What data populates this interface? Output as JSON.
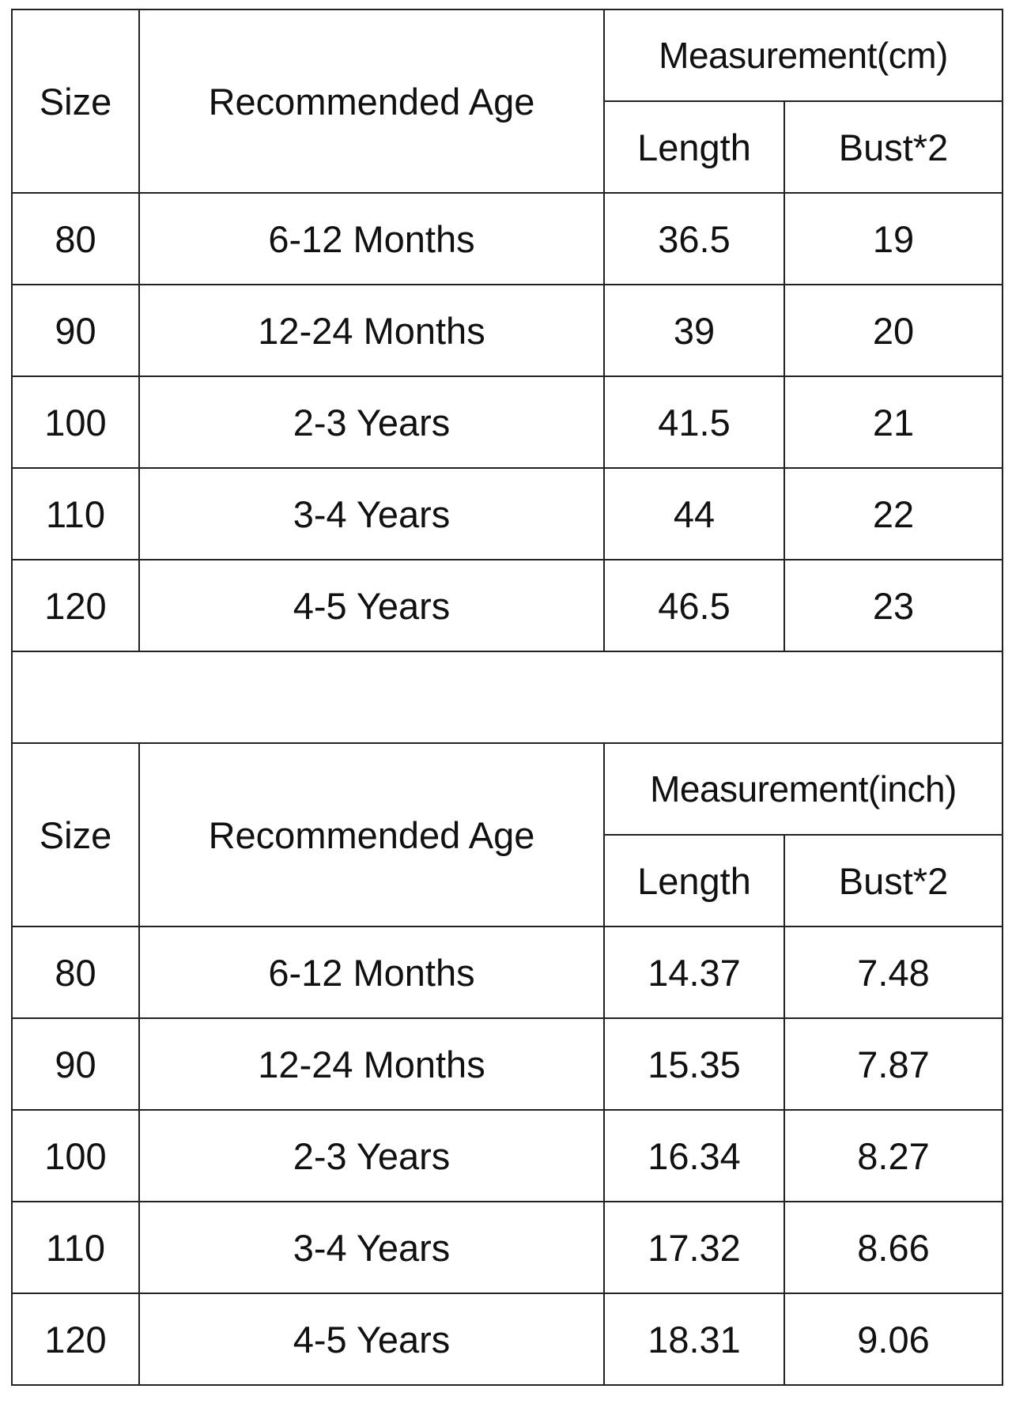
{
  "tables": [
    {
      "headers": {
        "size": "Size",
        "age": "Recommended Age",
        "measurement": "Measurement(cm)",
        "length": "Length",
        "bust": "Bust*2"
      },
      "rows": [
        [
          "80",
          "6-12 Months",
          "36.5",
          "19"
        ],
        [
          "90",
          "12-24 Months",
          "39",
          "20"
        ],
        [
          "100",
          "2-3 Years",
          "41.5",
          "21"
        ],
        [
          "110",
          "3-4 Years",
          "44",
          "22"
        ],
        [
          "120",
          "4-5 Years",
          "46.5",
          "23"
        ]
      ]
    },
    {
      "headers": {
        "size": "Size",
        "age": "Recommended Age",
        "measurement": "Measurement(inch)",
        "length": "Length",
        "bust": "Bust*2"
      },
      "rows": [
        [
          "80",
          "6-12 Months",
          "14.37",
          "7.48"
        ],
        [
          "90",
          "12-24 Months",
          "15.35",
          "7.87"
        ],
        [
          "100",
          "2-3 Years",
          "16.34",
          "8.27"
        ],
        [
          "110",
          "3-4 Years",
          "17.32",
          "8.66"
        ],
        [
          "120",
          "4-5 Years",
          "18.31",
          "9.06"
        ]
      ]
    }
  ]
}
